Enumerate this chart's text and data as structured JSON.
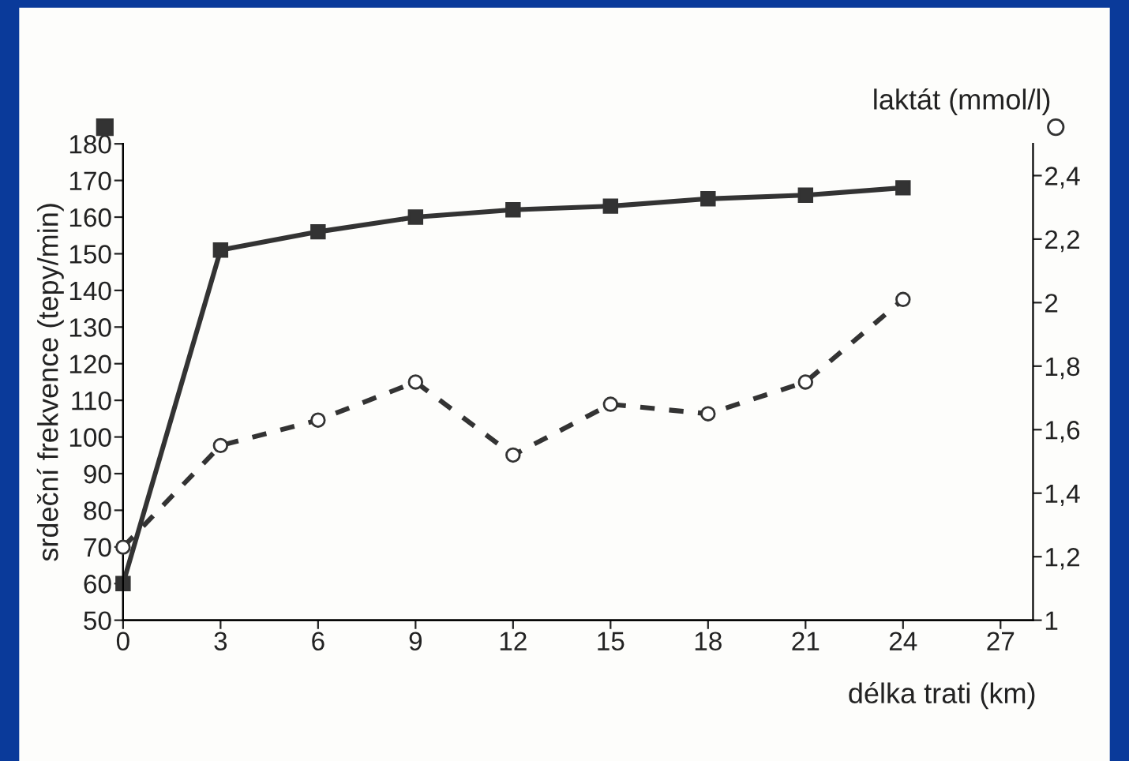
{
  "chart_data": {
    "type": "line",
    "xlabel": "délka trati (km)",
    "ylabel": "srdeční frekvence (tepy/min)",
    "y2label": "laktát (mmol/l)",
    "x": [
      0,
      3,
      6,
      9,
      12,
      15,
      18,
      21,
      24
    ],
    "series": [
      {
        "color": "#333333",
        "marker": "square",
        "line_style": "solid",
        "values": [
          60,
          151,
          156,
          160,
          162,
          163,
          165,
          166,
          168
        ]
      },
      {
        "color": "#333333",
        "marker": "circle",
        "line_style": "dashed",
        "axis": "y2",
        "values": [
          1.23,
          1.55,
          1.63,
          1.75,
          1.52,
          1.68,
          1.65,
          1.75,
          2.01
        ]
      }
    ],
    "xlim": [
      0,
      28
    ],
    "xticks": [
      0,
      3,
      6,
      9,
      12,
      15,
      18,
      21,
      24,
      27
    ],
    "ylim": [
      50,
      180
    ],
    "yticks": [
      50,
      60,
      70,
      80,
      90,
      100,
      110,
      120,
      130,
      140,
      150,
      160,
      170,
      180
    ],
    "y2lim": [
      1,
      2.5
    ],
    "y2ticks": [
      1,
      {
        "value": 1.2,
        "label": "1,2"
      },
      {
        "value": 1.4,
        "label": "1,4"
      },
      {
        "value": 1.6,
        "label": "1,6"
      },
      {
        "value": 1.8,
        "label": "1,8"
      },
      2,
      {
        "value": 2.2,
        "label": "2,2"
      },
      {
        "value": 2.4,
        "label": "2,4"
      }
    ],
    "grid": false,
    "legend": false
  }
}
